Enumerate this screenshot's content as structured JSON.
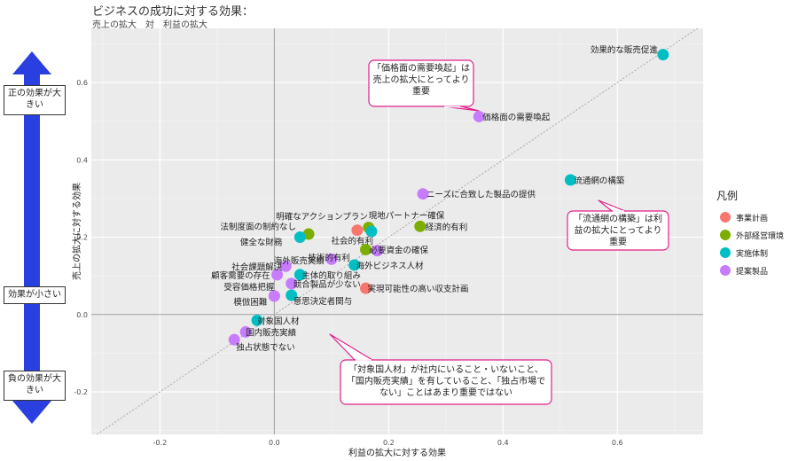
{
  "chart_data": {
    "type": "scatter",
    "title": "ビジネスの成功に対する効果：",
    "subtitle": "売上の拡大　対　利益の拡大",
    "xlabel": "利益の拡大に対する効果",
    "ylabel": "売上の拡大に対する効果",
    "xlim": [
      -0.32,
      0.75
    ],
    "ylim": [
      -0.31,
      0.74
    ],
    "x_ticks": [
      -0.2,
      0.0,
      0.2,
      0.4,
      0.6
    ],
    "y_ticks": [
      -0.2,
      0.0,
      0.2,
      0.4,
      0.6
    ],
    "x_tick_labels": [
      "-0.2",
      "0.0",
      "0.2",
      "0.4",
      "0.6"
    ],
    "y_tick_labels": [
      "-0.2",
      "0.0",
      "0.2",
      "0.4",
      "0.6"
    ],
    "grid": true,
    "legend_position": "right",
    "legend_title": "凡例",
    "series": [
      {
        "name": "事業計画",
        "color": "#F8766D",
        "points": [
          {
            "label": "明確なアクションプラン",
            "x": 0.145,
            "y": 0.218
          },
          {
            "label": "実現可能性の高い収支計画",
            "x": 0.16,
            "y": 0.068
          }
        ]
      },
      {
        "name": "外部経営環境",
        "color": "#7CAE00",
        "points": [
          {
            "label": "法制度面の制約なし",
            "x": 0.06,
            "y": 0.208
          },
          {
            "label": "現地パートナー確保",
            "x": 0.165,
            "y": 0.225
          },
          {
            "label": "必要資金の確保",
            "x": 0.16,
            "y": 0.168
          },
          {
            "label": "経済的有利",
            "x": 0.255,
            "y": 0.228
          }
        ]
      },
      {
        "name": "実施体制",
        "color": "#00BFC4",
        "points": [
          {
            "label": "効果的な販売促進",
            "x": 0.68,
            "y": 0.672
          },
          {
            "label": "流通網の構築",
            "x": 0.518,
            "y": 0.348
          },
          {
            "label": "社会的有利",
            "x": 0.17,
            "y": 0.215
          },
          {
            "label": "健全な財務",
            "x": 0.045,
            "y": 0.2
          },
          {
            "label": "海外ビジネス人材",
            "x": 0.14,
            "y": 0.128
          },
          {
            "label": "主体的取り組み",
            "x": 0.045,
            "y": 0.103
          },
          {
            "label": "意思決定者関与",
            "x": 0.03,
            "y": 0.05
          },
          {
            "label": "対象国人材",
            "x": -0.03,
            "y": -0.015
          }
        ]
      },
      {
        "name": "提案製品",
        "color": "#C77CFF",
        "points": [
          {
            "label": "価格面の需要喚起",
            "x": 0.358,
            "y": 0.512
          },
          {
            "label": "ニーズに合致した製品の提供",
            "x": 0.26,
            "y": 0.312
          },
          {
            "label": "技術的有利",
            "x": 0.18,
            "y": 0.165
          },
          {
            "label": "海外販売実績",
            "x": 0.1,
            "y": 0.143
          },
          {
            "label": "社会課題解決",
            "x": 0.02,
            "y": 0.125
          },
          {
            "label": "顧客需要の存在",
            "x": 0.005,
            "y": 0.103
          },
          {
            "label": "競合製品が少ない",
            "x": 0.03,
            "y": 0.08
          },
          {
            "label": "受容価格把握",
            "x": 0.0,
            "y": 0.048
          },
          {
            "label": "模倣困難",
            "x": 0.0,
            "y": 0.048
          },
          {
            "label": "国内販売実績",
            "x": -0.05,
            "y": -0.045
          },
          {
            "label": "独占状態でない",
            "x": -0.07,
            "y": -0.065
          }
        ]
      }
    ],
    "annotations": [
      {
        "text": "「価格面の需要喚起」は売上の拡大にとってより重要"
      },
      {
        "text": "「流通網の構築」は利益の拡大にとってより重要"
      },
      {
        "text": "「対象国人材」が社内にいること・いないこと、「国内販売実績」を有していること、「独占市場でない」ことはあまり重要ではない"
      }
    ],
    "side_labels": {
      "top": "正の効果が大きい",
      "middle": "効果が小さい",
      "bottom": "負の効果が大きい"
    },
    "arrow_color": "#2A3FE0"
  }
}
